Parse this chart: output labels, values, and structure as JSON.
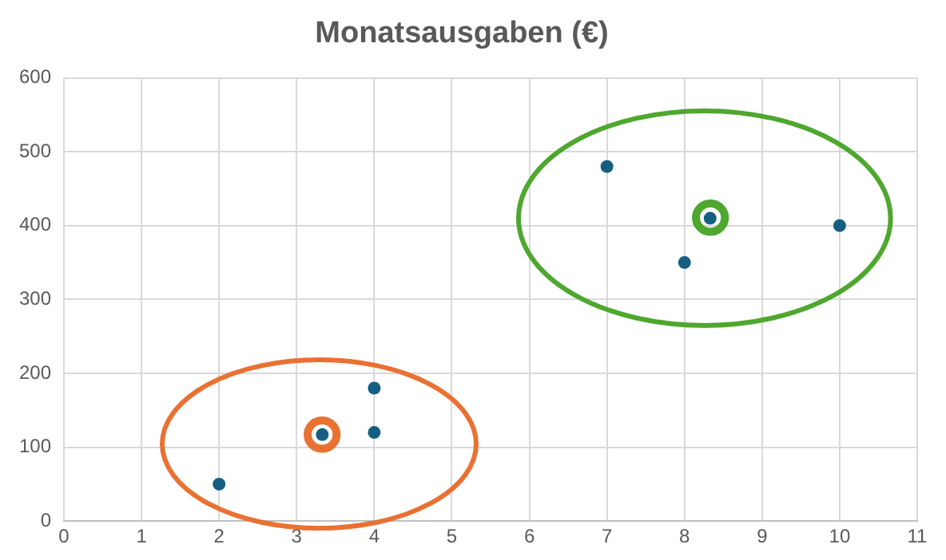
{
  "chart_data": {
    "type": "scatter",
    "title": "Monatsausgaben (€)",
    "x": [
      2,
      3.33,
      4,
      4,
      7,
      8,
      8.33,
      10
    ],
    "series": [
      {
        "color": "#156082",
        "values": [
          50,
          117,
          180,
          120,
          480,
          350,
          410,
          400
        ]
      }
    ],
    "xlim": [
      0,
      11
    ],
    "xticks": [
      0,
      1,
      2,
      3,
      4,
      5,
      6,
      7,
      8,
      9,
      10,
      11
    ],
    "ylim": [
      0,
      600
    ],
    "yticks": [
      0,
      100,
      200,
      300,
      400,
      500,
      600
    ],
    "grid": true,
    "marker": "circle",
    "legend": false
  }
}
